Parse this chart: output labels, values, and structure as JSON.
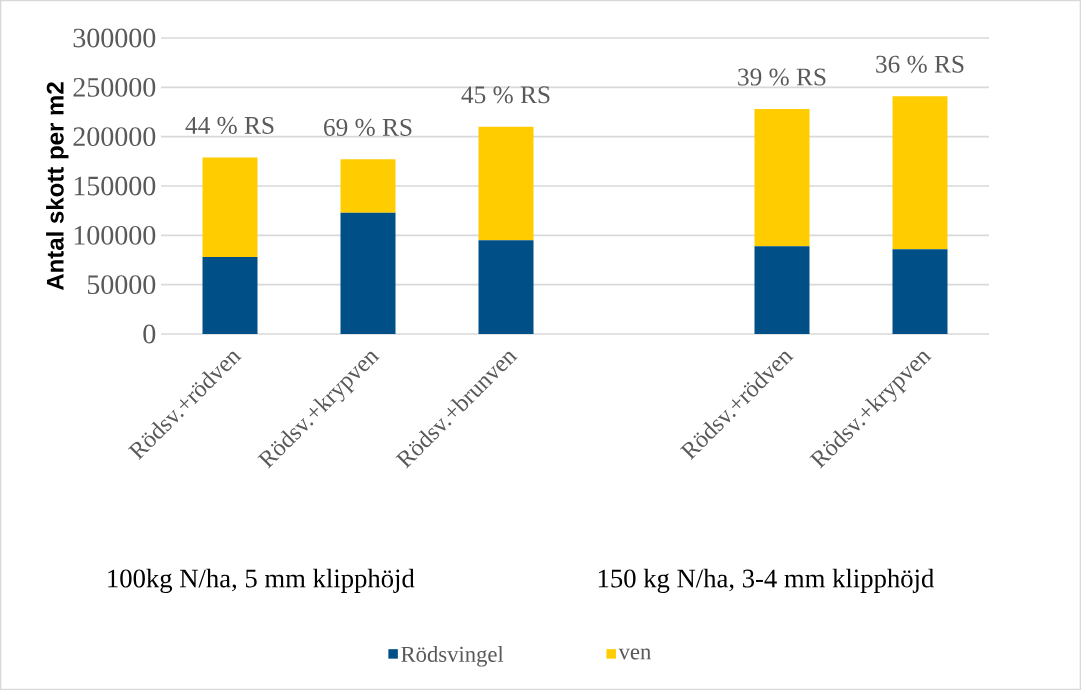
{
  "chart_data": {
    "type": "bar",
    "stacked": true,
    "ylabel": "Antal skott per m2",
    "categories": [
      "Rödsv.+rödven",
      "Rödsv.+krypven",
      "Rödsv.+brunven",
      null,
      "Rödsv.+rödven",
      "Rödsv.+krypven"
    ],
    "series": [
      {
        "name": "Rödsvingel",
        "color": "#004f86",
        "values": [
          78000,
          123000,
          95000,
          null,
          89000,
          86000
        ]
      },
      {
        "name": "ven",
        "color": "#ffcc00",
        "values": [
          101000,
          54000,
          115000,
          null,
          139000,
          155000
        ]
      }
    ],
    "ylim": [
      0,
      300000
    ],
    "yticks": [
      0,
      50000,
      100000,
      150000,
      200000,
      250000,
      300000
    ],
    "grid": "y",
    "legend": "bottom",
    "annotations": [
      "44 % RS",
      "69 % RS",
      "45 % RS",
      "39 % RS",
      "36 % RS",
      "100kg N/ha, 5 mm klipphöjd",
      "150 kg N/ha, 3-4 mm klipphöjd"
    ]
  }
}
